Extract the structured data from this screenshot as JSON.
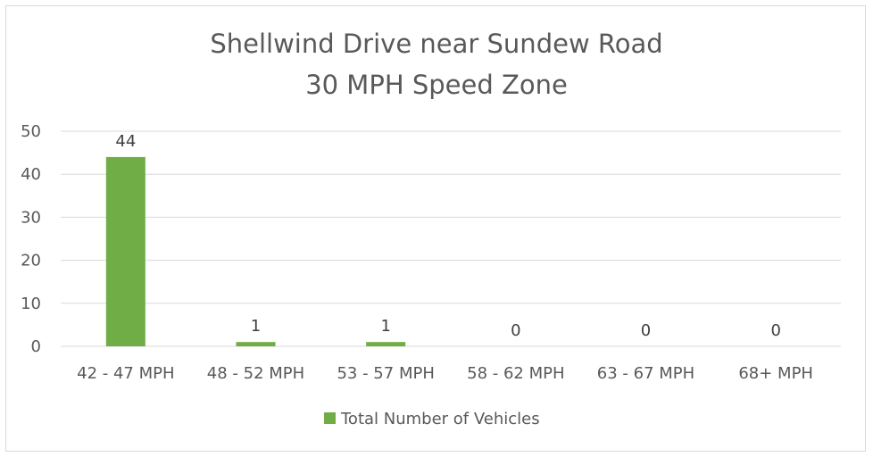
{
  "chart_data": {
    "type": "bar",
    "title": [
      "Shellwind Drive near Sundew Road",
      "30 MPH Speed Zone"
    ],
    "xlabel": "",
    "ylabel": "",
    "categories": [
      "42 - 47 MPH",
      "48 - 52 MPH",
      "53 - 57 MPH",
      "58 - 62 MPH",
      "63 - 67 MPH",
      "68+ MPH"
    ],
    "series": [
      {
        "name": "Total Number of Vehicles",
        "values": [
          44,
          1,
          1,
          0,
          0,
          0
        ],
        "color": "#70ad47"
      }
    ],
    "ylim": [
      0,
      50
    ],
    "yticks": [
      0,
      10,
      20,
      30,
      40,
      50
    ],
    "grid": true,
    "data_labels": true,
    "legend_position": "bottom"
  }
}
